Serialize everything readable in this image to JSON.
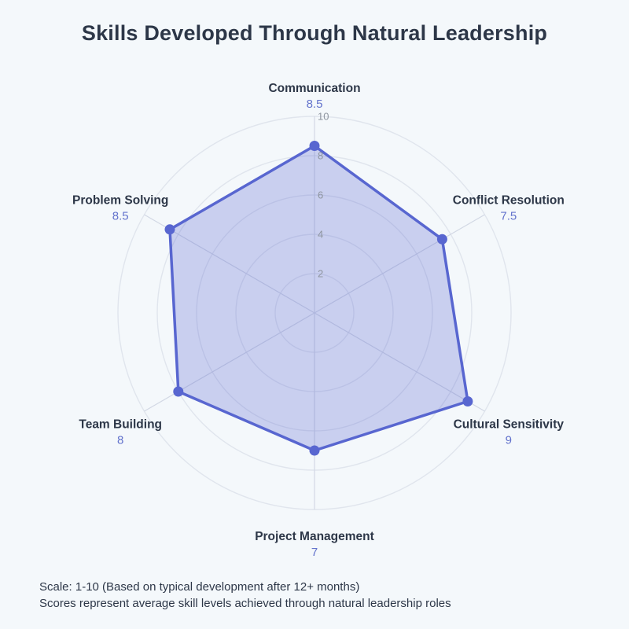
{
  "page": {
    "title": "Skills Developed Through Natural Leadership"
  },
  "footer": {
    "line1": "Scale: 1-10 (Based on typical development after 12+ months)",
    "line2": "Scores represent average skill levels achieved through natural leadership roles"
  },
  "chart_data": {
    "type": "radar",
    "title": "Skills Developed Through Natural Leadership",
    "categories": [
      "Communication",
      "Conflict Resolution",
      "Cultural Sensitivity",
      "Project Management",
      "Team Building",
      "Problem Solving"
    ],
    "values": [
      8.5,
      7.5,
      9,
      7,
      8,
      8.5
    ],
    "scale": {
      "min": 0,
      "max": 10,
      "ticks": [
        2,
        4,
        6,
        8,
        10
      ]
    },
    "grid": "circular",
    "legend": "none",
    "colors": {
      "background": "#f4f8fb",
      "title": "#2d3748",
      "line": "#5866d0",
      "point": "#5866d0",
      "fill": "rgba(88,102,208,0.28)",
      "category_label": "#2d3748",
      "value_label": "#6272cc",
      "tick_label": "#8e959f",
      "grid_line": "#e0e5ed",
      "spoke_line": "#d2d8e4"
    }
  }
}
